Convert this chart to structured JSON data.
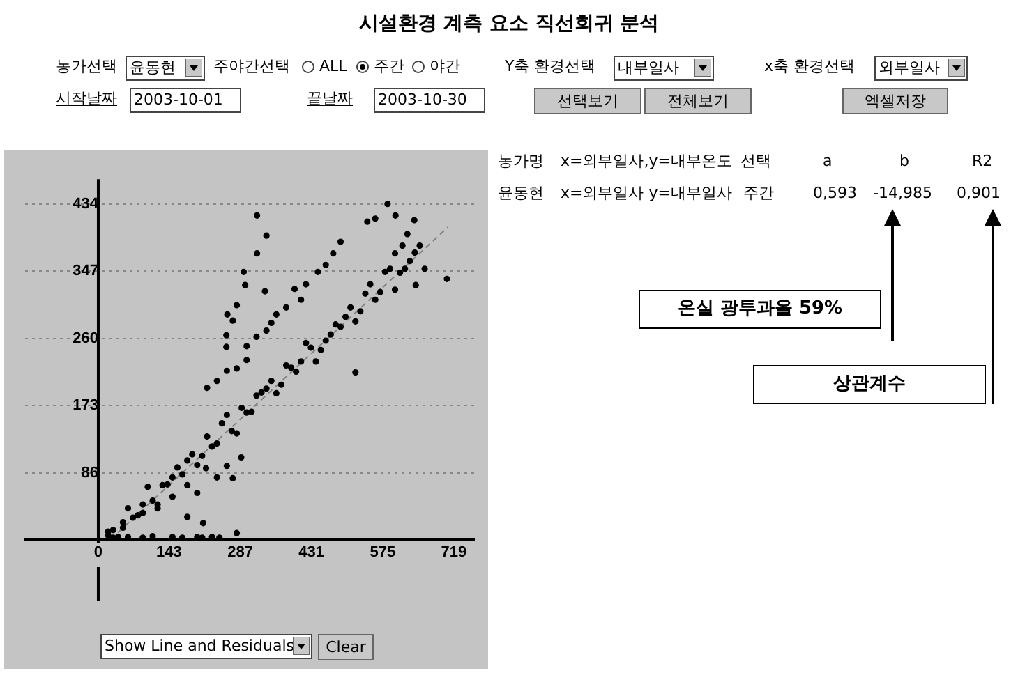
{
  "chart_data": {
    "type": "scatter",
    "title": "시설환경 계측 요소 직선회귀 분석",
    "annotations": [
      "농가선택",
      "윤동현",
      "주야간선택",
      "ALL",
      "주간",
      "야간",
      "Y축 환경선택",
      "내부일사",
      "x축 환경선택",
      "외부일사",
      "시작날짜",
      "2003-10-01",
      "끝날짜",
      "2003-10-30",
      "선택보기",
      "전체보기",
      "엑셀저장",
      "농가명",
      "x=외부일사,y=내부온도",
      "선택",
      "a",
      "b",
      "R2",
      "윤동현",
      "x=외부일사 y=내부일사",
      "주간",
      "0,593",
      "-14,985",
      "0,901",
      "온실 광투과율 59%",
      "상관계수",
      "Show Line and Residuals",
      "Clear"
    ],
    "xlim": [
      -148,
      760
    ],
    "ylim": [
      -80,
      466
    ],
    "xticks": [
      0,
      143,
      287,
      431,
      575,
      719
    ],
    "yticks": [
      86,
      173,
      260,
      347,
      434
    ],
    "grid": "y",
    "series": [
      {
        "type": "scatter",
        "color": "#000000",
        "marker": "circle",
        "x": [
          20,
          40,
          60,
          80,
          100,
          120,
          140,
          160,
          180,
          200,
          220,
          240,
          260,
          280,
          300,
          320,
          340,
          360,
          380,
          400,
          420,
          440,
          460,
          480,
          500,
          520,
          540,
          560,
          580,
          600,
          620,
          640,
          30,
          50,
          70,
          90,
          110,
          130,
          150,
          170,
          190,
          210,
          230,
          250,
          270,
          290,
          310,
          330,
          350,
          370,
          390,
          410,
          430,
          450,
          470,
          490,
          510,
          530,
          550,
          570,
          590,
          610,
          630,
          615,
          625,
          600,
          220,
          240,
          260,
          280,
          300,
          320,
          340,
          360,
          380,
          397,
          420,
          444,
          460,
          475,
          490,
          300,
          350,
          410,
          20,
          50,
          90,
          120,
          150,
          180,
          180,
          212,
          218,
          240,
          260,
          272,
          289,
          200,
          321,
          340,
          321,
          294,
          297,
          337,
          280,
          261,
          259,
          259,
          272,
          705,
          642,
          520,
          639,
          585,
          544,
          560,
          601,
          650,
          660,
          30,
          60,
          90,
          110,
          150,
          170,
          200,
          210,
          230,
          245,
          280
        ],
        "values": [
          10,
          3,
          40,
          31,
          68,
          45,
          71,
          93,
          102,
          96,
          133,
          124,
          161,
          137,
          164,
          186,
          195,
          189,
          225,
          217,
          254,
          230,
          257,
          278,
          288,
          282,
          318,
          310,
          346,
          323,
          350,
          371,
          12,
          22,
          28,
          45,
          50,
          70,
          80,
          84,
          110,
          108,
          120,
          150,
          140,
          170,
          165,
          190,
          205,
          200,
          222,
          230,
          248,
          245,
          265,
          275,
          300,
          295,
          330,
          320,
          350,
          345,
          360,
          380,
          395,
          370,
          196,
          205,
          218,
          221,
          250,
          262,
          270,
          291,
          300,
          324,
          330,
          346,
          355,
          370,
          385,
          232,
          280,
          310,
          5,
          15,
          34,
          40,
          55,
          29,
          70,
          21,
          92,
          80,
          95,
          79,
          106,
          60,
          419,
          393,
          370,
          346,
          329,
          321,
          303,
          291,
          264,
          249,
          283,
          337,
          329,
          216,
          413,
          434,
          411,
          415,
          419,
          380,
          350,
          2,
          3,
          2,
          4,
          3,
          2,
          3,
          2,
          3,
          2,
          8
        ]
      },
      {
        "type": "line",
        "color": "#808080",
        "marker": "none",
        "line_style": "dashed",
        "x": [
          25,
          707
        ],
        "values": [
          0,
          404
        ]
      }
    ]
  }
}
